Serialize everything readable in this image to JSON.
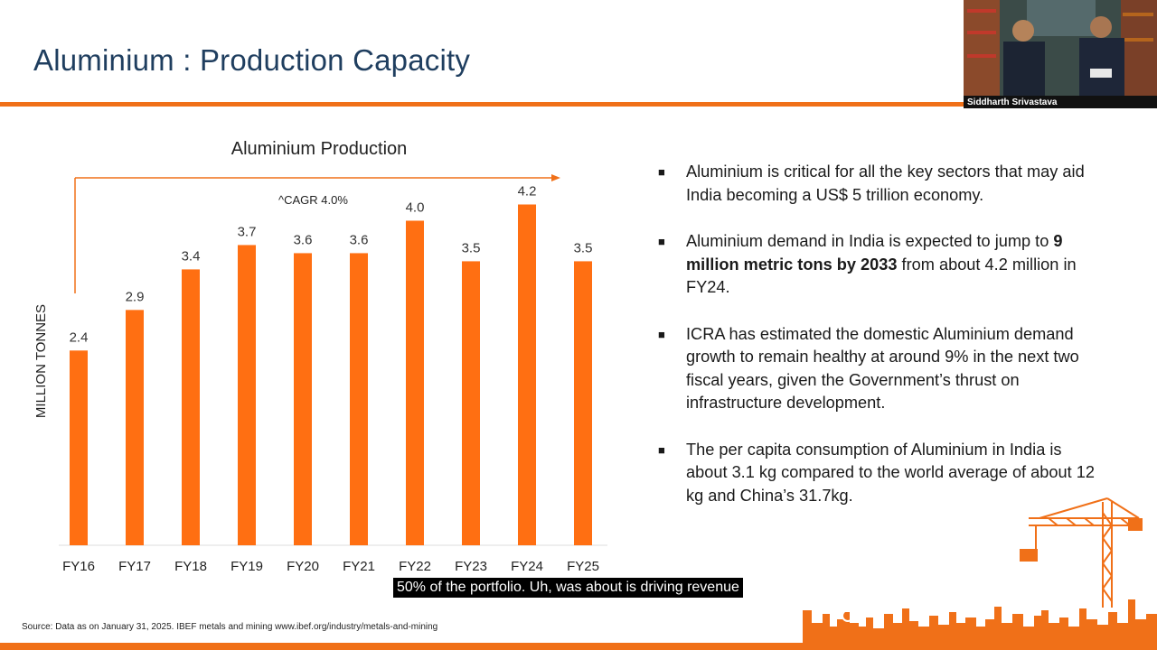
{
  "slide": {
    "title": "Aluminium : Production Capacity",
    "source": "Source: Data as on January 31, 2025. IBEF metals and mining www.ibef.org/industry/metals-and-mining"
  },
  "chart_data": {
    "type": "bar",
    "title": "Aluminium Production",
    "ylabel": "MILLION TONNES",
    "xlabel": "",
    "categories": [
      "FY16",
      "FY17",
      "FY18",
      "FY19",
      "FY20",
      "FY21",
      "FY22",
      "FY23",
      "FY24",
      "FY25"
    ],
    "values": [
      2.4,
      2.9,
      3.4,
      3.7,
      3.6,
      3.6,
      4.0,
      3.5,
      4.2,
      3.5
    ],
    "value_labels": [
      "2.4",
      "2.9",
      "3.4",
      "3.7",
      "3.6",
      "3.6",
      "4.0",
      "3.5",
      "4.2",
      "3.5"
    ],
    "ylim": [
      0,
      4.5
    ],
    "annotation": "^CAGR 4.0%",
    "bar_color": "#ff6f12",
    "grid": false
  },
  "bullets": [
    {
      "pre": "Aluminium is critical for all the key sectors that may aid India becoming a US$ 5 trillion economy.",
      "bold": "",
      "post": ""
    },
    {
      "pre": "Aluminium demand in India is expected to jump to ",
      "bold": "9 million metric tons by 2033",
      "post": " from about 4.2 million in FY24."
    },
    {
      "pre": "ICRA has estimated the domestic Aluminium demand growth to remain healthy at around 9% in the next two fiscal years, given the Government’s thrust on infrastructure development.",
      "bold": "",
      "post": ""
    },
    {
      "pre": "The per capita consumption of Aluminium in India is about 3.1 kg compared to the world average of about 12 kg and China’s 31.7kg.",
      "bold": "",
      "post": ""
    }
  ],
  "video": {
    "speaker_name": "Siddharth Srivastava"
  },
  "caption": {
    "text": "50% of the portfolio. Uh, was about is driving revenue"
  },
  "colors": {
    "accent": "#f07018",
    "title": "#1f3e5f"
  }
}
